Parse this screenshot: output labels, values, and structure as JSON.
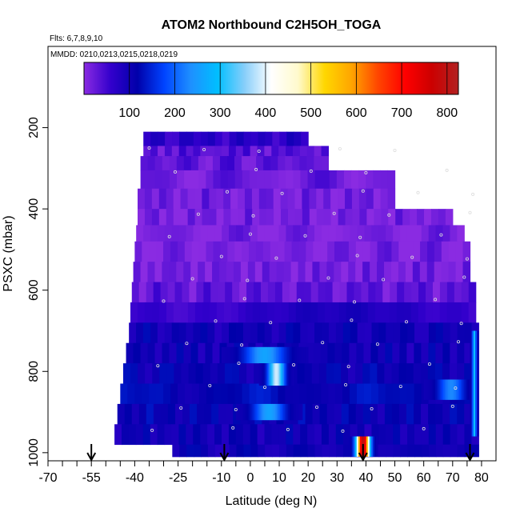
{
  "chart_data": {
    "type": "heatmap",
    "title": "ATOM2 Northbound C2H5OH_TOGA",
    "subtitle_flights": "Flts: 6,7,8,9,10",
    "subtitle_dates": "MMDD: 0210,0213,0215,0218,0219",
    "xlabel": "Latitude (deg N)",
    "ylabel": "PSXC (mbar)",
    "xlim": [
      -70,
      85
    ],
    "ylim": [
      1020,
      0
    ],
    "x_tick_labels": [
      "-70",
      "-55",
      "-40",
      "-25",
      "-10",
      "0",
      "10",
      "20",
      "30",
      "40",
      "50",
      "60",
      "70",
      "80"
    ],
    "x_tick_values": [
      -70,
      -55,
      -40,
      -25,
      -10,
      0,
      10,
      20,
      30,
      40,
      50,
      60,
      70,
      80
    ],
    "x_minor_ticks": [
      -65,
      -60,
      -50,
      -45,
      -35,
      -30,
      -20,
      -15,
      -5,
      5,
      15,
      25,
      35,
      45,
      55,
      65,
      75
    ],
    "y_tick_labels": [
      "200",
      "400",
      "600",
      "800",
      "1000"
    ],
    "y_tick_values": [
      200,
      400,
      600,
      800,
      1000
    ],
    "colorbar": {
      "range": [
        0,
        825
      ],
      "tick_labels": [
        "100",
        "200",
        "300",
        "400",
        "500",
        "600",
        "700",
        "800"
      ],
      "tick_values": [
        100,
        200,
        300,
        400,
        500,
        600,
        700,
        800
      ],
      "colors": [
        "#8a2be2",
        "#3300cc",
        "#0000aa",
        "#0044ff",
        "#1e90ff",
        "#00bfff",
        "#87cefa",
        "#ffffff",
        "#fffacd",
        "#ffd700",
        "#ffa500",
        "#ff4500",
        "#ff0000",
        "#cc0000",
        "#b22222"
      ]
    },
    "layers": [
      {
        "p_top": 210,
        "p_bottom": 245,
        "lat_start": -37,
        "lat_end": 20,
        "value": 70
      },
      {
        "p_top": 245,
        "p_bottom": 270,
        "lat_start": -37,
        "lat_end": 27,
        "value": 35
      },
      {
        "p_top": 270,
        "p_bottom": 305,
        "lat_start": -38,
        "lat_end": 27,
        "value": 30
      },
      {
        "p_top": 305,
        "p_bottom": 350,
        "lat_start": -38,
        "lat_end": 50,
        "value": 20
      },
      {
        "p_top": 350,
        "p_bottom": 400,
        "lat_start": -39,
        "lat_end": 50,
        "value": 15
      },
      {
        "p_top": 400,
        "p_bottom": 440,
        "lat_start": -39,
        "lat_end": 70,
        "value": 12
      },
      {
        "p_top": 440,
        "p_bottom": 480,
        "lat_start": -39.5,
        "lat_end": 74,
        "value": 10
      },
      {
        "p_top": 480,
        "p_bottom": 530,
        "lat_start": -40,
        "lat_end": 76,
        "value": 12
      },
      {
        "p_top": 530,
        "p_bottom": 580,
        "lat_start": -40.5,
        "lat_end": 76,
        "value": 15
      },
      {
        "p_top": 580,
        "p_bottom": 630,
        "lat_start": -41,
        "lat_end": 78,
        "value": 30
      },
      {
        "p_top": 630,
        "p_bottom": 680,
        "lat_start": -41.5,
        "lat_end": 78,
        "value": 70
      },
      {
        "p_top": 680,
        "p_bottom": 730,
        "lat_start": -42,
        "lat_end": 79,
        "value": 100
      },
      {
        "p_top": 730,
        "p_bottom": 780,
        "lat_start": -43,
        "lat_end": 79,
        "value": 100
      },
      {
        "p_top": 780,
        "p_bottom": 830,
        "lat_start": -44,
        "lat_end": 79,
        "value": 110
      },
      {
        "p_top": 830,
        "p_bottom": 880,
        "lat_start": -45,
        "lat_end": 79,
        "value": 120
      },
      {
        "p_top": 880,
        "p_bottom": 930,
        "lat_start": -46,
        "lat_end": 79,
        "value": 110
      },
      {
        "p_top": 930,
        "p_bottom": 980,
        "lat_start": -47,
        "lat_end": 79,
        "value": 100
      },
      {
        "p_top": 980,
        "p_bottom": 1010,
        "lat_start": -27,
        "lat_end": 79,
        "value": 100
      }
    ],
    "hotspots": [
      {
        "lat_start": -10,
        "lat_end": 20,
        "p_top": 740,
        "p_bottom": 780,
        "peak": 260
      },
      {
        "lat_start": 3,
        "lat_end": 15,
        "p_top": 780,
        "p_bottom": 835,
        "peak": 390
      },
      {
        "lat_start": -5,
        "lat_end": 18,
        "p_top": 880,
        "p_bottom": 920,
        "peak": 260
      },
      {
        "lat_start": 34,
        "lat_end": 44,
        "p_top": 960,
        "p_bottom": 1010,
        "peak": 800
      },
      {
        "lat_start": 60,
        "lat_end": 79,
        "p_top": 820,
        "p_bottom": 870,
        "peak": 230
      },
      {
        "lat_start": 76,
        "lat_end": 79,
        "p_top": 700,
        "p_bottom": 960,
        "peak": 300
      }
    ],
    "arrows_lat": [
      -55,
      -9,
      39,
      76
    ]
  }
}
